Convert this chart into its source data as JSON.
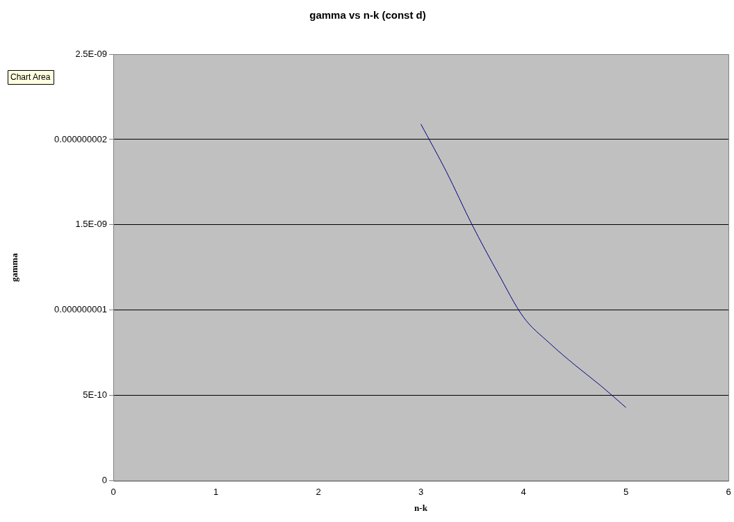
{
  "chart_data": {
    "type": "line",
    "title": "gamma vs n-k (const d)",
    "xlabel": "n-k",
    "ylabel": "gamma",
    "annotations": [
      "Chart Area"
    ],
    "series": [
      {
        "color": "#000080",
        "x": [
          3,
          3.25,
          3.5,
          3.75,
          4,
          4.25,
          4.5,
          4.75,
          5
        ],
        "values": [
          2.09e-09,
          1.81e-09,
          1.5e-09,
          1.22e-09,
          9.6e-10,
          8.1e-10,
          6.8e-10,
          5.6e-10,
          4.3e-10
        ]
      }
    ],
    "xlim": [
      0,
      6
    ],
    "xticks": [
      0,
      1,
      2,
      3,
      4,
      5,
      6
    ],
    "ylim": [
      0,
      2.5e-09
    ],
    "yticks": [
      0,
      {
        "value": 5e-10,
        "label": "5E-10"
      },
      {
        "value": 1e-09,
        "label": "0.000000001"
      },
      {
        "value": 1.5e-09,
        "label": "1.5E-09"
      },
      {
        "value": 2e-09,
        "label": "0.000000002"
      },
      {
        "value": 2.5e-09,
        "label": "2.5E-09"
      }
    ],
    "grid": "y",
    "legend": false,
    "marker": "none",
    "line_style": "solid"
  }
}
